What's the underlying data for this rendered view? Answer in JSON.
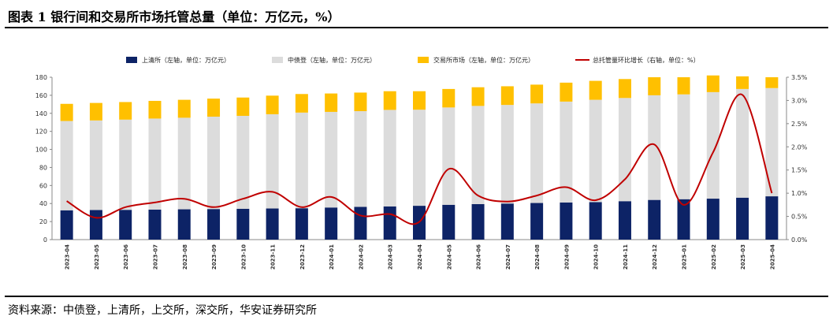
{
  "title": "图表 1  银行间和交易所市场托管总量（单位：万亿元，%）",
  "source": "资料来源：中债登，上清所，上交所，深交所，华安证券研究所",
  "chart_data": {
    "type": "bar",
    "stacked": true,
    "categories": [
      "2023-04",
      "2023-05",
      "2023-06",
      "2023-07",
      "2023-08",
      "2023-09",
      "2023-10",
      "2023-11",
      "2023-12",
      "2024-01",
      "2024-02",
      "2024-03",
      "2024-04",
      "2024-05",
      "2024-06",
      "2024-07",
      "2024-08",
      "2024-09",
      "2024-10",
      "2024-11",
      "2024-12",
      "2025-01",
      "2025-02",
      "2025-03",
      "2025-04"
    ],
    "series": [
      {
        "name": "上清所（左轴，单位：万亿元）",
        "color": "#0d2366",
        "axis": "left",
        "values": [
          32.5,
          32.8,
          33.0,
          33.3,
          33.6,
          33.9,
          34.2,
          34.5,
          34.8,
          35.6,
          36.3,
          36.8,
          37.5,
          38.6,
          39.4,
          40.0,
          40.6,
          41.2,
          41.6,
          42.6,
          44.0,
          44.8,
          45.4,
          46.5,
          48.0
        ]
      },
      {
        "name": "中债登（左轴，单位：万亿元）",
        "color": "#dcdcdc",
        "axis": "left",
        "values": [
          99.0,
          99.3,
          100.0,
          100.9,
          101.5,
          102.4,
          103.0,
          104.5,
          106.0,
          106.0,
          106.1,
          107.0,
          106.5,
          107.9,
          108.8,
          109.3,
          110.4,
          111.8,
          113.4,
          114.4,
          116.0,
          116.2,
          118.1,
          120.5,
          120.0
        ]
      },
      {
        "name": "交易所市场（左轴，单位：万亿元）",
        "color": "#ffc000",
        "axis": "left",
        "values": [
          19.0,
          19.4,
          19.5,
          19.6,
          19.9,
          20.0,
          20.3,
          20.6,
          20.6,
          20.4,
          20.6,
          20.7,
          20.5,
          20.5,
          20.7,
          20.7,
          20.8,
          21.0,
          21.0,
          21.0,
          20.0,
          19.0,
          18.5,
          14.0,
          12.0
        ]
      },
      {
        "name": "总托管量环比增长（右轴，单位：%）",
        "color": "#c00000",
        "axis": "right",
        "kind": "line",
        "values": [
          0.83,
          0.47,
          0.7,
          0.8,
          0.88,
          0.7,
          0.88,
          1.03,
          0.7,
          0.92,
          0.52,
          0.55,
          0.38,
          1.52,
          0.95,
          0.82,
          0.95,
          1.13,
          0.85,
          1.3,
          2.05,
          0.75,
          1.88,
          3.12,
          1.0
        ]
      }
    ],
    "y_left": {
      "min": 0,
      "max": 180,
      "step": 20,
      "ticks": [
        "0",
        "20",
        "40",
        "60",
        "80",
        "100",
        "120",
        "140",
        "160",
        "180"
      ]
    },
    "y_right": {
      "min": 0,
      "max": 3.5,
      "step": 0.5,
      "ticks": [
        "0.0%",
        "0.5%",
        "1.0%",
        "1.5%",
        "2.0%",
        "2.5%",
        "3.0%",
        "3.5%"
      ]
    },
    "legend_position": "top"
  }
}
